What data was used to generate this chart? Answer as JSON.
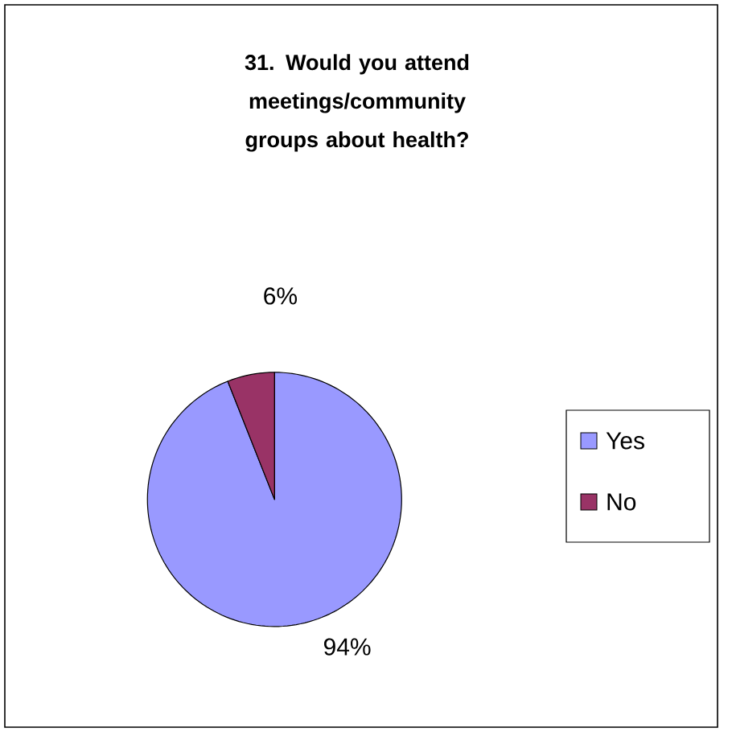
{
  "chart_data": {
    "type": "pie",
    "title": "31. Would you attend meetings/community groups about health?",
    "categories": [
      "Yes",
      "No"
    ],
    "values": [
      94,
      6
    ],
    "value_labels": [
      "94%",
      "6%"
    ],
    "colors": [
      "#9999ff",
      "#993366"
    ],
    "legend": "right"
  }
}
